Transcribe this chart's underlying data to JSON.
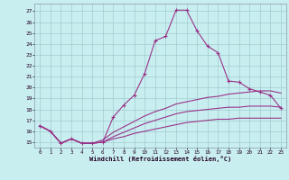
{
  "xlabel": "Windchill (Refroidissement éolien,°C)",
  "bg_color": "#c8eef0",
  "grid_color": "#a0ccd0",
  "line_color": "#993388",
  "xlim": [
    -0.5,
    23.5
  ],
  "ylim": [
    14.5,
    27.7
  ],
  "yticks": [
    15,
    16,
    17,
    18,
    19,
    20,
    21,
    22,
    23,
    24,
    25,
    26,
    27
  ],
  "xticks": [
    0,
    1,
    2,
    3,
    4,
    5,
    6,
    7,
    8,
    9,
    10,
    11,
    12,
    13,
    14,
    15,
    16,
    17,
    18,
    19,
    20,
    21,
    22,
    23
  ],
  "line1_x": [
    0,
    1,
    2,
    3,
    4,
    5,
    6,
    7,
    8,
    9,
    10,
    11,
    12,
    13,
    14,
    15,
    16,
    17,
    18,
    19,
    20,
    21,
    22,
    23
  ],
  "line1_y": [
    16.5,
    16.0,
    14.9,
    15.3,
    14.9,
    14.9,
    15.0,
    17.3,
    18.4,
    19.3,
    21.3,
    24.3,
    24.7,
    27.1,
    27.1,
    25.2,
    23.8,
    23.2,
    20.6,
    20.5,
    19.9,
    19.6,
    19.3,
    18.1
  ],
  "line2_x": [
    0,
    1,
    2,
    3,
    4,
    5,
    6,
    7,
    8,
    9,
    10,
    11,
    12,
    13,
    14,
    15,
    16,
    17,
    18,
    19,
    20,
    21,
    22,
    23
  ],
  "line2_y": [
    16.5,
    16.0,
    14.9,
    15.3,
    14.9,
    14.9,
    15.2,
    15.9,
    16.4,
    16.9,
    17.4,
    17.8,
    18.1,
    18.5,
    18.7,
    18.9,
    19.1,
    19.2,
    19.4,
    19.5,
    19.6,
    19.7,
    19.7,
    19.5
  ],
  "line3_x": [
    0,
    1,
    2,
    3,
    4,
    5,
    6,
    7,
    8,
    9,
    10,
    11,
    12,
    13,
    14,
    15,
    16,
    17,
    18,
    19,
    20,
    21,
    22,
    23
  ],
  "line3_y": [
    16.5,
    16.0,
    14.9,
    15.3,
    14.9,
    14.9,
    15.0,
    15.5,
    15.9,
    16.3,
    16.7,
    17.0,
    17.3,
    17.6,
    17.8,
    17.9,
    18.0,
    18.1,
    18.2,
    18.2,
    18.3,
    18.3,
    18.3,
    18.2
  ],
  "line4_x": [
    0,
    1,
    2,
    3,
    4,
    5,
    6,
    7,
    8,
    9,
    10,
    11,
    12,
    13,
    14,
    15,
    16,
    17,
    18,
    19,
    20,
    21,
    22,
    23
  ],
  "line4_y": [
    16.5,
    16.0,
    14.9,
    15.3,
    14.9,
    14.9,
    15.0,
    15.3,
    15.5,
    15.8,
    16.0,
    16.2,
    16.4,
    16.6,
    16.8,
    16.9,
    17.0,
    17.1,
    17.1,
    17.2,
    17.2,
    17.2,
    17.2,
    17.2
  ]
}
